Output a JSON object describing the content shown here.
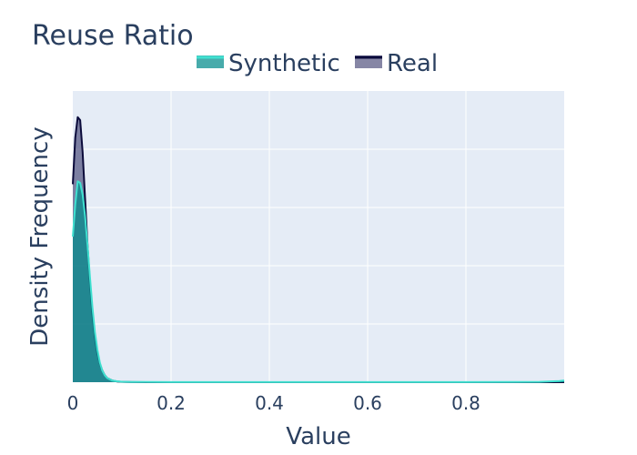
{
  "chart_data": {
    "type": "area",
    "title": "Reuse Ratio",
    "xlabel": "Value",
    "ylabel": "Density Frequency",
    "xlim": [
      0,
      1
    ],
    "ylim": [
      0,
      50
    ],
    "x_ticks": [
      "0",
      "0.2",
      "0.4",
      "0.6",
      "0.8"
    ],
    "x_tick_values": [
      0,
      0.2,
      0.4,
      0.6,
      0.8
    ],
    "y_gridlines": [
      10,
      20,
      30,
      40
    ],
    "grid": true,
    "legend_position": "top",
    "x": [
      0,
      0.005,
      0.01,
      0.015,
      0.02,
      0.025,
      0.03,
      0.035,
      0.04,
      0.045,
      0.05,
      0.055,
      0.06,
      0.065,
      0.07,
      0.08,
      0.09,
      0.1,
      0.12,
      0.15,
      0.2,
      0.3,
      0.5,
      0.7,
      0.9,
      0.95,
      0.99,
      1.0
    ],
    "series": [
      {
        "name": "Synthetic",
        "values": [
          25,
          30.5,
          34.5,
          34.2,
          32.2,
          28.5,
          23.5,
          18,
          12.8,
          8.6,
          5.6,
          3.4,
          2,
          1.2,
          0.7,
          0.3,
          0.15,
          0.08,
          0.04,
          0.03,
          0.02,
          0.02,
          0.02,
          0.02,
          0.03,
          0.05,
          0.2,
          0.3
        ],
        "line_color": "#40e0d0",
        "fill_color": "rgba(0,139,139,0.72)"
      },
      {
        "name": "Real",
        "values": [
          34,
          42,
          45.5,
          45,
          39.5,
          31.5,
          23.5,
          17,
          11.6,
          7.7,
          5,
          3.2,
          2,
          1.2,
          0.7,
          0.3,
          0.12,
          0.06,
          0.02,
          0.01,
          0.01,
          0.01,
          0.01,
          0.01,
          0.01,
          0.01,
          0.01,
          0.01
        ],
        "line_color": "#0b0b3b",
        "fill_color": "rgba(60,60,110,0.62)"
      }
    ]
  }
}
